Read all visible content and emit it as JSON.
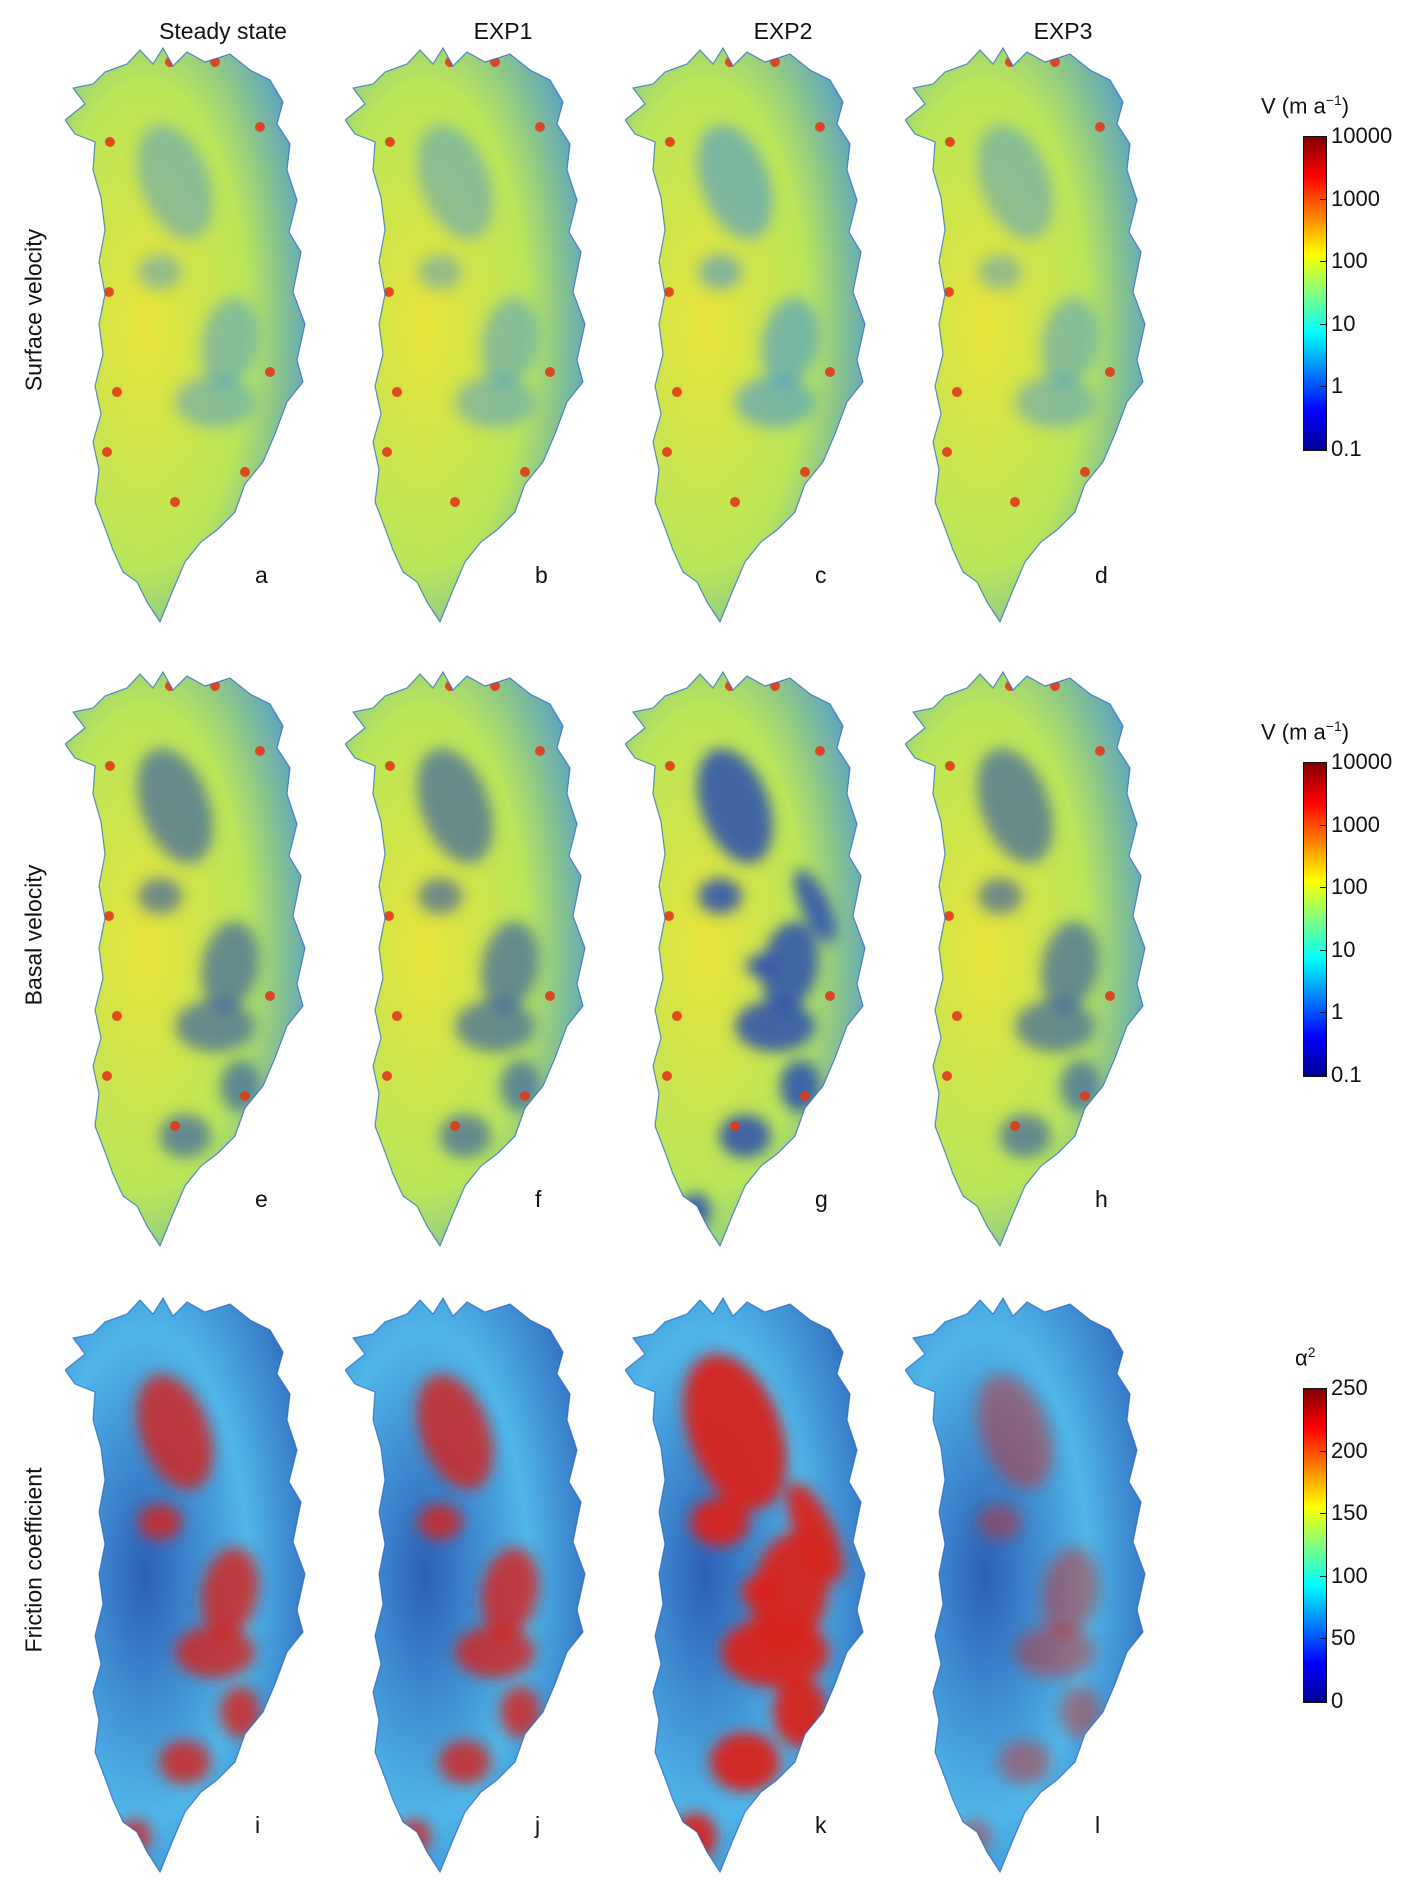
{
  "columns": [
    "Steady state",
    "EXP1",
    "EXP2",
    "EXP3"
  ],
  "rows": [
    {
      "title": "Surface velocity",
      "panels": [
        "a",
        "b",
        "c",
        "d"
      ],
      "colorbar": {
        "label_main": "V (m a",
        "label_exp": "−1",
        "label_close": ")",
        "ticks": [
          "10000",
          "1000",
          "100",
          "10",
          "1",
          "0.1"
        ],
        "scale": "log"
      }
    },
    {
      "title": "Basal velocity",
      "panels": [
        "e",
        "f",
        "g",
        "h"
      ],
      "colorbar": {
        "label_main": "V (m a",
        "label_exp": "−1",
        "label_close": ")",
        "ticks": [
          "10000",
          "1000",
          "100",
          "10",
          "1",
          "0.1"
        ],
        "scale": "log"
      }
    },
    {
      "title": "Friction coefficient",
      "panels": [
        "i",
        "j",
        "k",
        "l"
      ],
      "colorbar": {
        "label_main": "α",
        "label_exp": "2",
        "label_close": "",
        "ticks": [
          "250",
          "200",
          "150",
          "100",
          "50",
          "0"
        ],
        "scale": "linear"
      }
    }
  ],
  "colormap": "jet",
  "colors": {
    "jet": [
      "#00008f",
      "#0000ff",
      "#0080ff",
      "#00ffff",
      "#80ff80",
      "#ffff00",
      "#ff8000",
      "#ff0000",
      "#800000"
    ],
    "velocity_interior": "#b9e65a",
    "velocity_margin": "#e8e33a",
    "velocity_slow": "#3f8fe0",
    "velocity_fast": "#e03a1a",
    "friction_low": "#2d5fb8",
    "friction_mid": "#4fb6e8",
    "friction_high": "#d8231a"
  }
}
